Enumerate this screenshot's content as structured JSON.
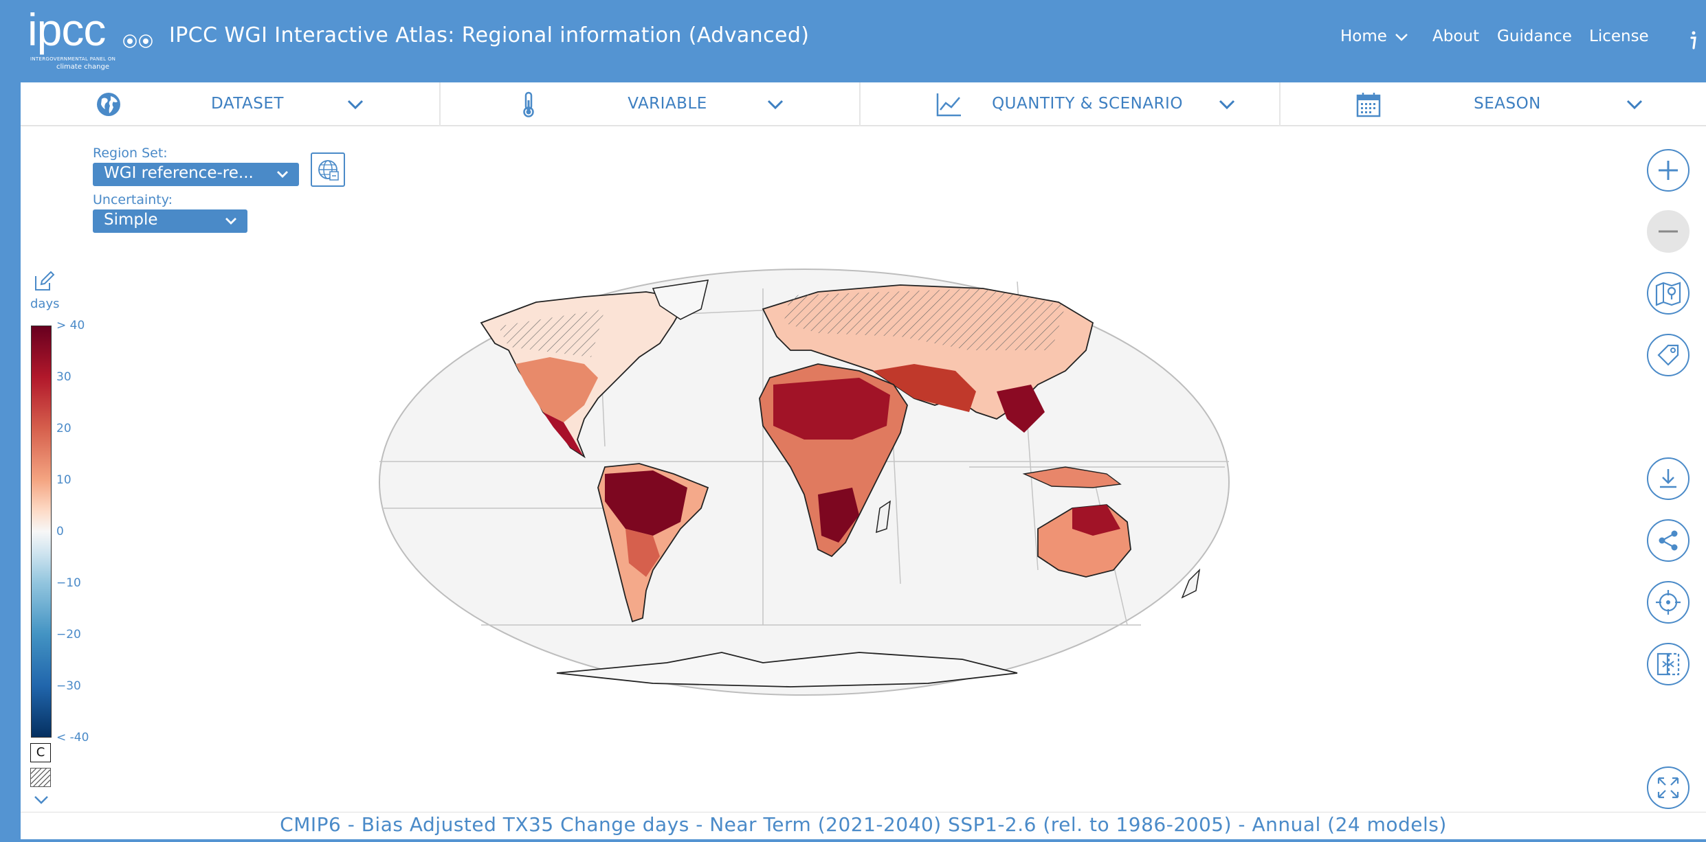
{
  "header": {
    "logo_text": "ipcc",
    "logo_sub1": "INTERGOVERNMENTAL PANEL ON",
    "logo_sub2": "climate change",
    "title": "IPCC WGI Interactive Atlas: Regional information (Advanced)",
    "nav": [
      {
        "label": "Home",
        "has_dropdown": true
      },
      {
        "label": "About"
      },
      {
        "label": "Guidance"
      },
      {
        "label": "License"
      }
    ],
    "info_icon": "info-icon"
  },
  "tabs": [
    {
      "label": "DATASET",
      "icon": "globe-icon"
    },
    {
      "label": "VARIABLE",
      "icon": "thermometer-icon"
    },
    {
      "label": "QUANTITY & SCENARIO",
      "icon": "line-chart-icon"
    },
    {
      "label": "SEASON",
      "icon": "calendar-icon"
    }
  ],
  "controls": {
    "region_set": {
      "label": "Region Set:",
      "value": "WGI reference-re..."
    },
    "uncertainty": {
      "label": "Uncertainty:",
      "value": "Simple"
    }
  },
  "legend": {
    "unit": "days",
    "ticks": [
      "> 40",
      "30",
      "20",
      "10",
      "0",
      "−10",
      "−20",
      "−30",
      "< -40"
    ],
    "c_label": "C"
  },
  "caption": "CMIP6 - Bias Adjusted TX35 Change days - Near Term (2021-2040) SSP1-2.6 (rel. to 1986-2005) - Annual (24 models)",
  "colors": {
    "header_bg": "#5494d2",
    "accent": "#4a8ac8",
    "high": "#67001f",
    "low": "#053061"
  },
  "toolbar_icons": [
    "zoom-in-icon",
    "zoom-out-icon",
    "map-pin-icon",
    "tag-icon",
    "download-icon",
    "share-icon",
    "crosshair-icon",
    "compare-icon",
    "fullscreen-icon"
  ]
}
